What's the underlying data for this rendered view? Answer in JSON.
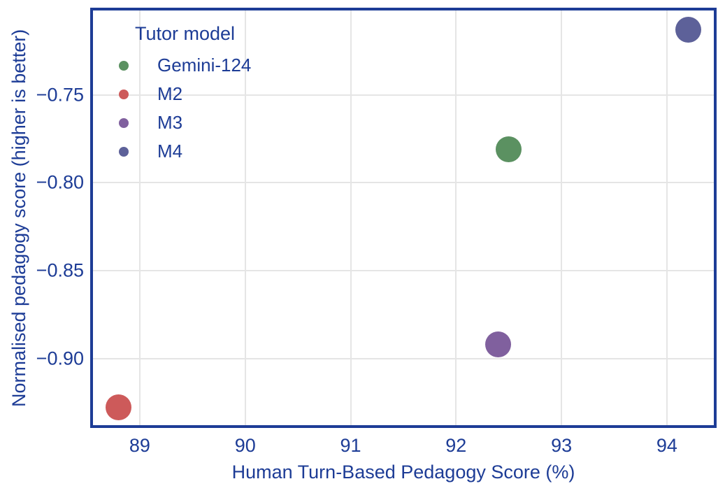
{
  "colors": {
    "axis_text": "#1d3c96",
    "plot_border": "#1d3c96",
    "grid": "#e5e5e5",
    "background": "#ffffff"
  },
  "chart_data": {
    "type": "scatter",
    "title": "",
    "xlabel": "Human Turn-Based Pedagogy Score (%)",
    "ylabel": "Normalised pedagogy score (higher is better)",
    "xlim": [
      88.556,
      94.445
    ],
    "ylim": [
      -0.938,
      -0.702
    ],
    "x_ticks": [
      89,
      90,
      91,
      92,
      93,
      94
    ],
    "y_ticks": [
      -0.75,
      -0.8,
      -0.85,
      -0.9
    ],
    "grid": true,
    "marker_diameter_px": 37,
    "legend": {
      "title": "Tutor model",
      "position": "upper left"
    },
    "series": [
      {
        "name": "Gemini-124",
        "color": "#5b9161",
        "points": [
          {
            "x": 92.5,
            "y": -0.781
          }
        ]
      },
      {
        "name": "M2",
        "color": "#cd5a5a",
        "points": [
          {
            "x": 88.8,
            "y": -0.928
          }
        ]
      },
      {
        "name": "M3",
        "color": "#80609e",
        "points": [
          {
            "x": 92.4,
            "y": -0.892
          }
        ]
      },
      {
        "name": "M4",
        "color": "#5d6199",
        "points": [
          {
            "x": 94.2,
            "y": -0.713
          }
        ]
      }
    ]
  }
}
